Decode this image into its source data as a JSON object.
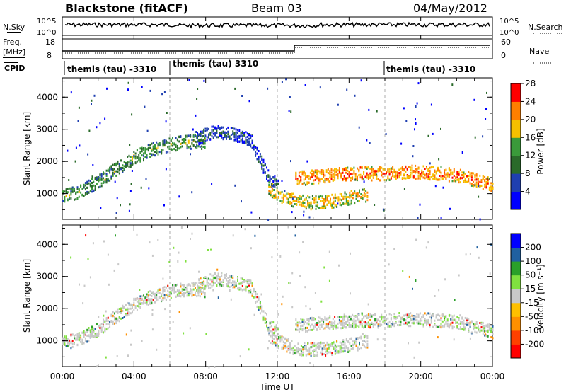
{
  "header": {
    "title": "Blackstone (fitACF)",
    "beam": "Beam 03",
    "date": "04/May/2012"
  },
  "noise_panel": {
    "left_label": "N.Sky",
    "right_label": "N.Search",
    "yticks": [
      "10^5",
      "10^0"
    ]
  },
  "freq_panel": {
    "label": "Freq.",
    "units": "[MHz]",
    "yticks_left": [
      "18",
      "8"
    ],
    "yticks_right": [
      "60",
      "0"
    ],
    "right_label": "Nave"
  },
  "cpid_panel": {
    "label": "CPID",
    "segments": [
      {
        "label": "themis (tau) -3310",
        "start_hour": 0,
        "end_hour": 6
      },
      {
        "label": "themis (tau) 3310",
        "start_hour": 6,
        "end_hour": 18
      },
      {
        "label": "themis (tau) -3310",
        "start_hour": 18,
        "end_hour": 24
      }
    ]
  },
  "chart_data": [
    {
      "type": "heatmap",
      "panel": "power",
      "ylabel": "Slant Range [km]",
      "ylim": [
        200,
        4600
      ],
      "yticks": [
        1000,
        2000,
        3000,
        4000
      ],
      "xlim": [
        0,
        24
      ],
      "colorbar": {
        "label": "Power [dB]",
        "ticks": [
          "4",
          "8",
          "12",
          "16",
          "20",
          "24",
          "28"
        ],
        "range": [
          0,
          30
        ],
        "colors": [
          "#0000ff",
          "#1f3fb0",
          "#2a6a2a",
          "#3a9a3a",
          "#f5c000",
          "#ff7f00",
          "#ff0000"
        ]
      },
      "echo_bands": [
        {
          "x": [
            0.0,
            1.0,
            2.0,
            3.0,
            4.0,
            5.0,
            6.0,
            7.0,
            8.0
          ],
          "range_km": [
            950,
            1100,
            1400,
            1800,
            2150,
            2400,
            2550,
            2650,
            2600
          ],
          "level": 14
        },
        {
          "x": [
            7.5,
            8.5,
            9.5,
            10.5,
            11.0,
            11.5,
            12.0
          ],
          "range_km": [
            2750,
            2950,
            2900,
            2700,
            2100,
            1500,
            1300
          ],
          "level": 8
        },
        {
          "x": [
            11.5,
            12.0,
            12.5,
            13.0,
            14.0,
            15.0,
            16.0,
            17.0
          ],
          "range_km": [
            1200,
            1000,
            900,
            800,
            750,
            800,
            900,
            1000
          ],
          "level": 20
        },
        {
          "x": [
            13.0,
            14.0,
            15.0,
            16.0,
            17.0,
            18.0,
            19.0,
            20.0,
            21.0,
            22.0,
            23.0,
            24.0
          ],
          "range_km": [
            1500,
            1550,
            1600,
            1650,
            1650,
            1650,
            1700,
            1700,
            1650,
            1600,
            1450,
            1300
          ],
          "level": 24
        }
      ]
    },
    {
      "type": "heatmap",
      "panel": "velocity",
      "xlabel": "Time UT",
      "ylabel": "Slant Range [km]",
      "ylim": [
        200,
        4600
      ],
      "yticks": [
        1000,
        2000,
        3000,
        4000
      ],
      "xlim": [
        0,
        24
      ],
      "xticks": [
        "00:00",
        "04:00",
        "08:00",
        "12:00",
        "16:00",
        "20:00",
        "00:00"
      ],
      "colorbar": {
        "label": "Velocity [m s⁻¹]",
        "ticks": [
          "-200",
          "-100",
          "-50",
          "-15",
          "15",
          "50",
          "100",
          "200"
        ],
        "colors": [
          "#ff0000",
          "#ff4000",
          "#ff9000",
          "#ffc000",
          "#c8c8c8",
          "#80e040",
          "#2aa02a",
          "#2060a0",
          "#0000ff"
        ]
      }
    }
  ]
}
